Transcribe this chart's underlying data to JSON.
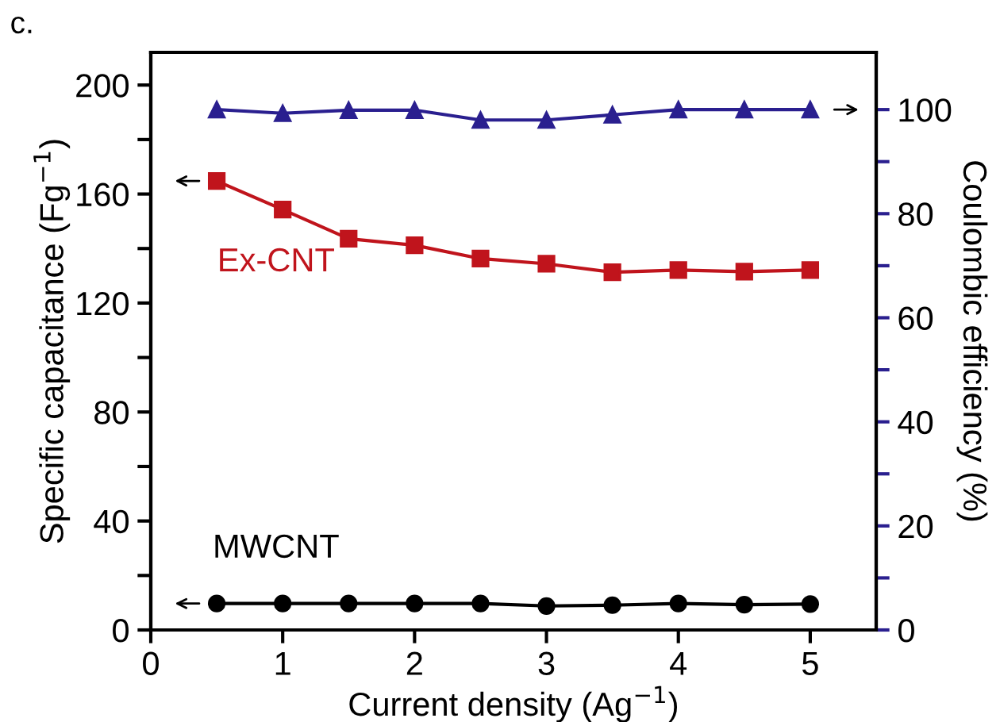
{
  "chart_data": {
    "type": "line",
    "xlabel": "Current density (Ag$^{−1}$)",
    "ylabel": "Specific capacitance (Fg$^{−1}$)",
    "y2label": "Coulombic efficiency (%)",
    "annotations": [
      "c."
    ],
    "x": [
      0.5,
      1,
      1.5,
      2,
      2.5,
      3,
      3.5,
      4,
      4.5,
      5
    ],
    "series": [
      {
        "name": "Ex-CNT",
        "color": "#c0141c",
        "marker": "square",
        "values": [
          164.8,
          154.3,
          143.6,
          141.2,
          136.3,
          134.4,
          131.3,
          132.1,
          131.5,
          132.1
        ]
      },
      {
        "name": "MWCNT",
        "color": "#000000",
        "marker": "circle",
        "values": [
          9.7,
          9.7,
          9.7,
          9.7,
          9.7,
          8.8,
          9.1,
          9.7,
          9.3,
          9.5
        ]
      },
      {
        "axis": "y2",
        "color": "#2a1f8f",
        "marker": "triangle",
        "values": [
          100,
          99.3,
          99.9,
          99.9,
          98,
          98,
          99,
          100,
          100,
          100
        ]
      }
    ],
    "xlim": [
      0,
      5.5
    ],
    "xticks": [
      0,
      1,
      2,
      3,
      4,
      5
    ],
    "ylim": [
      0,
      212
    ],
    "yticks": [
      0,
      {
        "value": 20,
        "label": null
      },
      40,
      {
        "value": 60,
        "label": null
      },
      80,
      {
        "value": 100,
        "label": null
      },
      120,
      {
        "value": 140,
        "label": null
      },
      160,
      {
        "value": 180,
        "label": null
      },
      200
    ],
    "y2lim": [
      0,
      111
    ],
    "y2ticks": [
      0,
      {
        "value": 10,
        "label": null
      },
      20,
      {
        "value": 30,
        "label": null
      },
      40,
      {
        "value": 50,
        "label": null
      },
      60,
      {
        "value": 70,
        "label": null
      },
      80,
      {
        "value": 90,
        "label": null
      },
      100
    ],
    "grid": false,
    "legend": false,
    "line_style": "solid"
  }
}
